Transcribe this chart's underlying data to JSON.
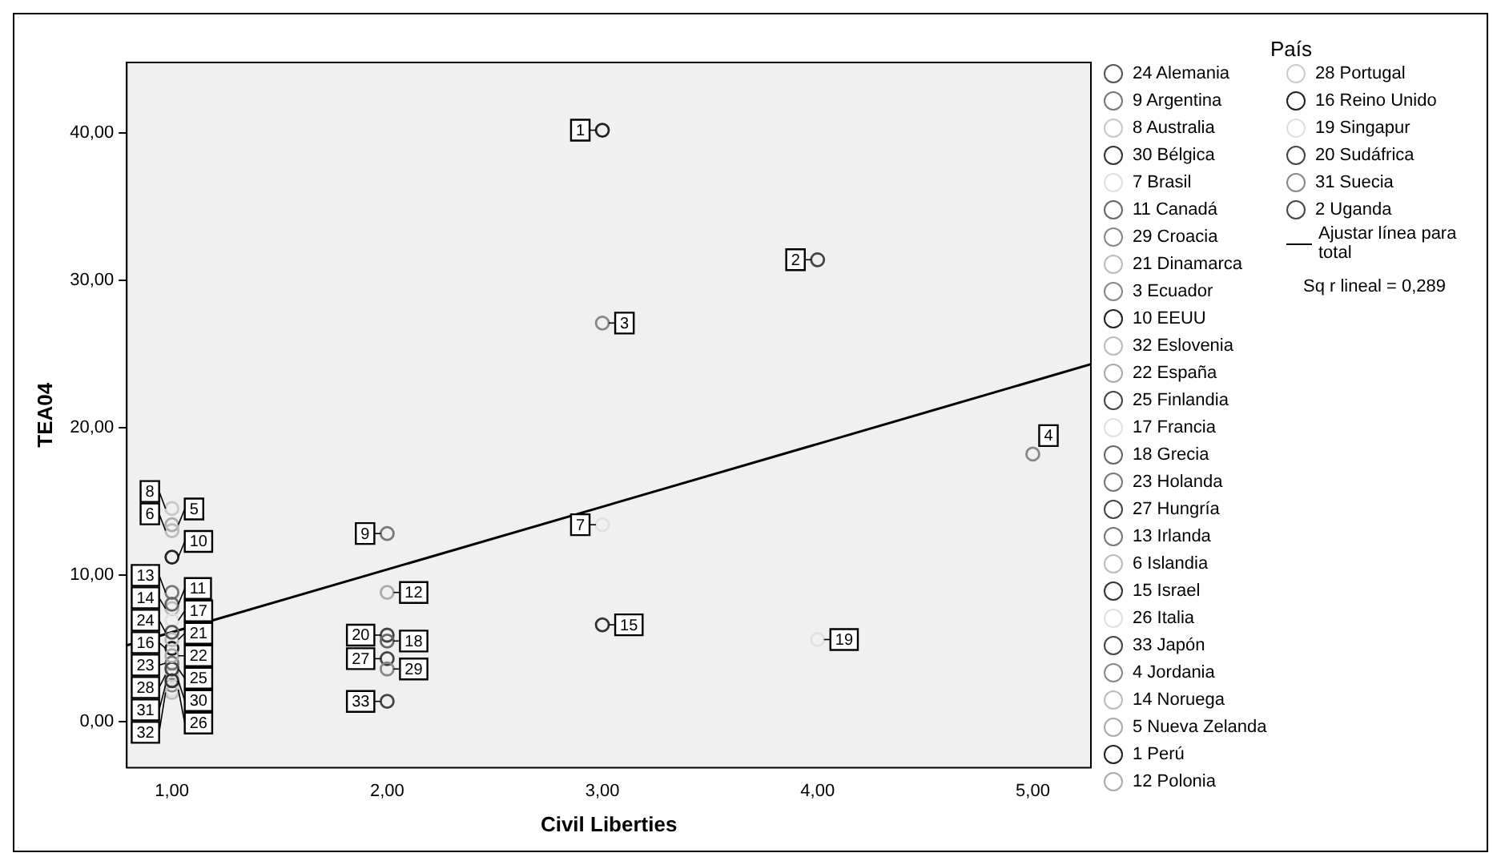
{
  "chart_data": {
    "type": "scatter",
    "xlabel": "Civil Liberties",
    "ylabel": "TEA04",
    "legend_title": "País",
    "legend": "right",
    "marker": "circle",
    "grid": false,
    "xlim": [
      0.79,
      5.27
    ],
    "ylim": [
      -3.1,
      44.8
    ],
    "xticks": [
      {
        "value": 1,
        "label": "1,00"
      },
      {
        "value": 2,
        "label": "2,00"
      },
      {
        "value": 3,
        "label": "3,00"
      },
      {
        "value": 4,
        "label": "4,00"
      },
      {
        "value": 5,
        "label": "5,00"
      }
    ],
    "yticks": [
      {
        "value": 0,
        "label": "0,00"
      },
      {
        "value": 10,
        "label": "10,00"
      },
      {
        "value": 20,
        "label": "20,00"
      },
      {
        "value": 30,
        "label": "30,00"
      },
      {
        "value": 40,
        "label": "40,00"
      }
    ],
    "annotations": [
      "Sq r lineal = 0,289",
      {
        "text": "24",
        "x": 1,
        "y": 6.1
      },
      {
        "text": "9",
        "x": 2,
        "y": 12.8
      },
      {
        "text": "8",
        "x": 1,
        "y": 14.5
      },
      {
        "text": "30",
        "x": 1,
        "y": 2.8
      },
      {
        "text": "7",
        "x": 3,
        "y": 13.4
      },
      {
        "text": "11",
        "x": 1,
        "y": 8.0
      },
      {
        "text": "29",
        "x": 2,
        "y": 3.6
      },
      {
        "text": "21",
        "x": 1,
        "y": 5.6
      },
      {
        "text": "3",
        "x": 3,
        "y": 27.1
      },
      {
        "text": "10",
        "x": 1,
        "y": 11.2
      },
      {
        "text": "32",
        "x": 1,
        "y": 2.0
      },
      {
        "text": "22",
        "x": 1,
        "y": 4.5
      },
      {
        "text": "25",
        "x": 1,
        "y": 3.6
      },
      {
        "text": "17",
        "x": 1,
        "y": 6.9
      },
      {
        "text": "18",
        "x": 2,
        "y": 5.5
      },
      {
        "text": "23",
        "x": 1,
        "y": 4.0
      },
      {
        "text": "27",
        "x": 2,
        "y": 4.3
      },
      {
        "text": "13",
        "x": 1,
        "y": 8.8
      },
      {
        "text": "6",
        "x": 1,
        "y": 13.0
      },
      {
        "text": "15",
        "x": 3,
        "y": 6.6
      },
      {
        "text": "26",
        "x": 1,
        "y": 2.2
      },
      {
        "text": "33",
        "x": 2,
        "y": 1.4
      },
      {
        "text": "4",
        "x": 5,
        "y": 18.2
      },
      {
        "text": "14",
        "x": 1,
        "y": 7.7
      },
      {
        "text": "5",
        "x": 1,
        "y": 13.4
      },
      {
        "text": "1",
        "x": 3,
        "y": 40.2
      },
      {
        "text": "12",
        "x": 2,
        "y": 8.8
      },
      {
        "text": "28",
        "x": 1,
        "y": 3.2
      },
      {
        "text": "16",
        "x": 1,
        "y": 5.0
      },
      {
        "text": "19",
        "x": 4,
        "y": 5.6
      },
      {
        "text": "20",
        "x": 2,
        "y": 5.9
      },
      {
        "text": "31",
        "x": 1,
        "y": 2.5
      },
      {
        "text": "2",
        "x": 4,
        "y": 31.4
      }
    ],
    "series": [
      {
        "name": "24 Alemania",
        "color": "#555555",
        "x": [
          1
        ],
        "values": [
          6.1
        ]
      },
      {
        "name": "9  Argentina",
        "color": "#777777",
        "x": [
          2
        ],
        "values": [
          12.8
        ]
      },
      {
        "name": "8  Australia",
        "color": "#c8c8c8",
        "x": [
          1
        ],
        "values": [
          14.5
        ]
      },
      {
        "name": "30 Bélgica",
        "color": "#333333",
        "x": [
          1
        ],
        "values": [
          2.8
        ]
      },
      {
        "name": "7  Brasil",
        "color": "#e0e0e0",
        "x": [
          3
        ],
        "values": [
          13.4
        ]
      },
      {
        "name": "11 Canadá",
        "color": "#666666",
        "x": [
          1
        ],
        "values": [
          8.0
        ]
      },
      {
        "name": "29 Croacia",
        "color": "#888888",
        "x": [
          2
        ],
        "values": [
          3.6
        ]
      },
      {
        "name": "21 Dinamarca",
        "color": "#bbbbbb",
        "x": [
          1
        ],
        "values": [
          5.6
        ]
      },
      {
        "name": "3  Ecuador",
        "color": "#888888",
        "x": [
          3
        ],
        "values": [
          27.1
        ]
      },
      {
        "name": "10 EEUU",
        "color": "#222222",
        "x": [
          1
        ],
        "values": [
          11.2
        ]
      },
      {
        "name": "32 Eslovenia",
        "color": "#bbbbbb",
        "x": [
          1
        ],
        "values": [
          2.0
        ]
      },
      {
        "name": "22 España",
        "color": "#aaaaaa",
        "x": [
          1
        ],
        "values": [
          4.5
        ]
      },
      {
        "name": "25 Finlandia",
        "color": "#444444",
        "x": [
          1
        ],
        "values": [
          3.6
        ]
      },
      {
        "name": "17 Francia",
        "color": "#e0e0e0",
        "x": [
          1
        ],
        "values": [
          6.9
        ]
      },
      {
        "name": "18 Grecia",
        "color": "#666666",
        "x": [
          2
        ],
        "values": [
          5.5
        ]
      },
      {
        "name": "23 Holanda",
        "color": "#777777",
        "x": [
          1
        ],
        "values": [
          4.0
        ]
      },
      {
        "name": "27 Hungría",
        "color": "#444444",
        "x": [
          2
        ],
        "values": [
          4.3
        ]
      },
      {
        "name": "13 Irlanda",
        "color": "#777777",
        "x": [
          1
        ],
        "values": [
          8.8
        ]
      },
      {
        "name": "6  Islandia",
        "color": "#bbbbbb",
        "x": [
          1
        ],
        "values": [
          13.0
        ]
      },
      {
        "name": "15 Israel",
        "color": "#333333",
        "x": [
          3
        ],
        "values": [
          6.6
        ]
      },
      {
        "name": "26 Italia",
        "color": "#e0e0e0",
        "x": [
          1
        ],
        "values": [
          2.2
        ]
      },
      {
        "name": "33 Japón",
        "color": "#444444",
        "x": [
          2
        ],
        "values": [
          1.4
        ]
      },
      {
        "name": "4  Jordania",
        "color": "#888888",
        "x": [
          5
        ],
        "values": [
          18.2
        ]
      },
      {
        "name": "14 Noruega",
        "color": "#bbbbbb",
        "x": [
          1
        ],
        "values": [
          7.7
        ]
      },
      {
        "name": "5  Nueva Zelanda",
        "color": "#aaaaaa",
        "x": [
          1
        ],
        "values": [
          13.4
        ]
      },
      {
        "name": "1 Perú",
        "color": "#222222",
        "x": [
          3
        ],
        "values": [
          40.2
        ]
      },
      {
        "name": "12 Polonia",
        "color": "#aaaaaa",
        "x": [
          2
        ],
        "values": [
          8.8
        ]
      },
      {
        "name": "28 Portugal",
        "color": "#cccccc",
        "x": [
          1
        ],
        "values": [
          3.2
        ]
      },
      {
        "name": "16 Reino Unido",
        "color": "#222222",
        "x": [
          1
        ],
        "values": [
          5.0
        ]
      },
      {
        "name": "19 Singapur",
        "color": "#e0e0e0",
        "x": [
          4
        ],
        "values": [
          5.6
        ]
      },
      {
        "name": "20 Sudáfrica",
        "color": "#444444",
        "x": [
          2
        ],
        "values": [
          5.9
        ]
      },
      {
        "name": "31 Suecia",
        "color": "#888888",
        "x": [
          1
        ],
        "values": [
          2.5
        ]
      },
      {
        "name": "2  Uganda",
        "color": "#444444",
        "x": [
          4
        ],
        "values": [
          31.4
        ]
      },
      {
        "name": "Ajustar línea para total",
        "type": "line",
        "marker": "none",
        "color": "#000000",
        "x": [
          0.79,
          5.27
        ],
        "values": [
          5.2,
          24.3
        ]
      }
    ]
  }
}
